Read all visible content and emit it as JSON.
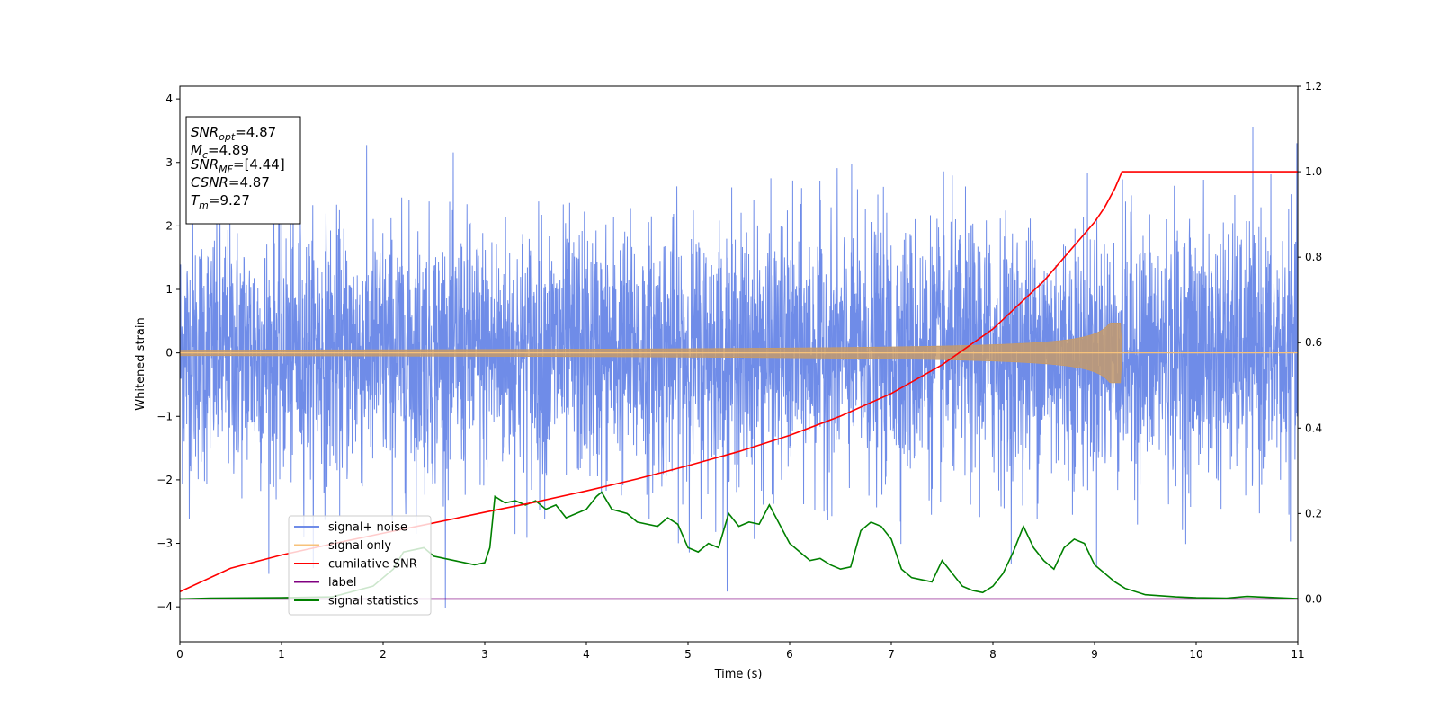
{
  "chart_data": {
    "type": "line",
    "title": "",
    "xlabel": "Time (s)",
    "ylabel": "Whitened strain",
    "xlim": [
      0,
      11
    ],
    "ylim": [
      -4.55,
      4.2
    ],
    "ylim_right": [
      -0.1,
      1.2
    ],
    "x_ticks": [
      "0",
      "1",
      "2",
      "3",
      "4",
      "5",
      "6",
      "7",
      "8",
      "9",
      "10",
      "11"
    ],
    "y_ticks": [
      "4",
      "3",
      "2",
      "1",
      "0",
      "−1",
      "−2",
      "−3",
      "−4"
    ],
    "y_right_ticks": [
      "1.2",
      "1.0",
      "0.8",
      "0.6",
      "0.4",
      "0.2",
      "0.0"
    ],
    "grid": false,
    "legend_position": "lower-left",
    "series": [
      {
        "name": "signal+ noise",
        "color": "#6f8ce8",
        "axis": "left",
        "description": "whitened noisy strain, approx. Gaussian with std ~1, extremes near 3.8 and -4.2",
        "approx_range": [
          -4.2,
          3.8
        ]
      },
      {
        "name": "signal only",
        "color": "#f7c27a",
        "axis": "left",
        "description": "chirp waveform, amplitude growing until merger at ~9.27 s, then zero",
        "merger_time": 9.27,
        "peak_amplitude": 0.47
      },
      {
        "name": "cumilative SNR",
        "color": "#ff0000",
        "axis": "right",
        "x": [
          0,
          0.5,
          1,
          1.5,
          2,
          2.5,
          3,
          3.5,
          4,
          4.5,
          5,
          5.5,
          6,
          6.5,
          7,
          7.5,
          8,
          8.5,
          9,
          9.1,
          9.2,
          9.27,
          11
        ],
        "y": [
          0.017,
          0.072,
          0.103,
          0.129,
          0.154,
          0.178,
          0.203,
          0.227,
          0.253,
          0.281,
          0.312,
          0.345,
          0.383,
          0.428,
          0.481,
          0.548,
          0.632,
          0.744,
          0.882,
          0.917,
          0.961,
          1.0,
          1.0
        ]
      },
      {
        "name": "label",
        "color": "#800080",
        "axis": "right",
        "x": [
          0,
          11
        ],
        "y": [
          0,
          0
        ]
      },
      {
        "name": "signal statistics",
        "color": "#008000",
        "axis": "right",
        "x": [
          0,
          0.3,
          1.0,
          1.5,
          1.9,
          2.1,
          2.2,
          2.4,
          2.5,
          2.6,
          2.7,
          2.8,
          2.9,
          3.0,
          3.05,
          3.1,
          3.2,
          3.3,
          3.4,
          3.5,
          3.6,
          3.7,
          3.8,
          3.9,
          4.0,
          4.1,
          4.15,
          4.25,
          4.4,
          4.5,
          4.7,
          4.8,
          4.9,
          5.0,
          5.1,
          5.2,
          5.3,
          5.4,
          5.5,
          5.6,
          5.7,
          5.8,
          6.0,
          6.1,
          6.2,
          6.3,
          6.4,
          6.5,
          6.6,
          6.7,
          6.8,
          6.9,
          7.0,
          7.1,
          7.2,
          7.3,
          7.4,
          7.5,
          7.6,
          7.7,
          7.8,
          7.9,
          8.0,
          8.1,
          8.2,
          8.3,
          8.4,
          8.5,
          8.6,
          8.7,
          8.8,
          8.9,
          9.0,
          9.1,
          9.2,
          9.3,
          9.5,
          9.8,
          10.0,
          10.3,
          10.5,
          10.7,
          11.0
        ],
        "y": [
          0.0,
          0.002,
          0.003,
          0.005,
          0.03,
          0.07,
          0.11,
          0.12,
          0.1,
          0.095,
          0.09,
          0.085,
          0.08,
          0.085,
          0.12,
          0.24,
          0.225,
          0.23,
          0.22,
          0.23,
          0.21,
          0.22,
          0.19,
          0.2,
          0.21,
          0.24,
          0.25,
          0.21,
          0.2,
          0.18,
          0.17,
          0.19,
          0.175,
          0.12,
          0.11,
          0.13,
          0.12,
          0.2,
          0.17,
          0.18,
          0.175,
          0.22,
          0.13,
          0.11,
          0.09,
          0.095,
          0.08,
          0.07,
          0.075,
          0.16,
          0.18,
          0.17,
          0.14,
          0.07,
          0.05,
          0.045,
          0.04,
          0.09,
          0.06,
          0.03,
          0.02,
          0.015,
          0.03,
          0.06,
          0.11,
          0.17,
          0.12,
          0.09,
          0.07,
          0.12,
          0.14,
          0.13,
          0.08,
          0.06,
          0.04,
          0.025,
          0.01,
          0.005,
          0.003,
          0.002,
          0.006,
          0.004,
          0.001
        ]
      }
    ],
    "annotations": [
      {
        "key": "SNR",
        "sub": "opt",
        "value": "=4.87"
      },
      {
        "key": "M",
        "sub": "c",
        "value": "=4.89"
      },
      {
        "key": "SNR",
        "sub": "MF",
        "value": "=[4.44]"
      },
      {
        "key": "CSNR",
        "sub": "",
        "value": "=4.87"
      },
      {
        "key": "T",
        "sub": "m",
        "value": "=9.27"
      }
    ]
  }
}
